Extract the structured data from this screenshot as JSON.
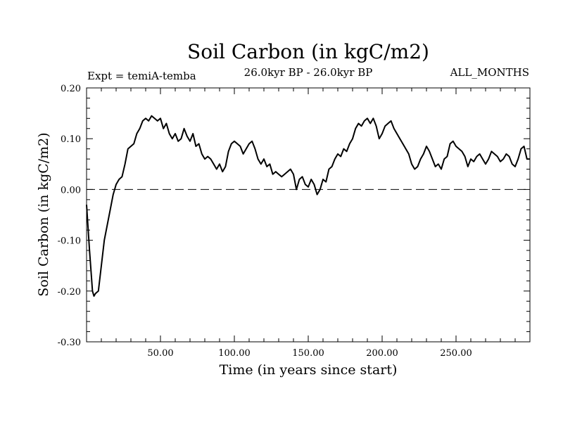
{
  "chart_data": {
    "type": "line",
    "title": "Soil Carbon (in kgC/m2)",
    "subtitle": "26.0kyr BP - 26.0kyr BP",
    "left_label": "Expt = temiA-temba",
    "right_label": "ALL_MONTHS",
    "xlabel": "Time (in years since start)",
    "ylabel": "Soil Carbon (in kgC/m2)",
    "xlim": [
      0,
      300
    ],
    "ylim": [
      -0.3,
      0.2
    ],
    "x_ticks": [
      50,
      100,
      150,
      200,
      250
    ],
    "x_tick_labels": [
      "50.00",
      "100.00",
      "150.00",
      "200.00",
      "250.00"
    ],
    "y_ticks": [
      -0.3,
      -0.2,
      -0.1,
      0.0,
      0.1,
      0.2
    ],
    "y_tick_labels": [
      "-0.30",
      "-0.20",
      "-0.10",
      "0.00",
      "0.10",
      "0.20"
    ],
    "zero_line": "dashed",
    "series": [
      {
        "name": "Soil Carbon",
        "color": "#000000",
        "x": [
          0,
          2,
          4,
          5,
          6,
          8,
          10,
          12,
          14,
          16,
          18,
          20,
          22,
          24,
          26,
          28,
          30,
          32,
          34,
          36,
          38,
          40,
          42,
          44,
          46,
          48,
          50,
          52,
          54,
          56,
          58,
          60,
          62,
          64,
          66,
          68,
          70,
          72,
          74,
          76,
          78,
          80,
          82,
          84,
          86,
          88,
          90,
          92,
          94,
          96,
          98,
          100,
          102,
          104,
          106,
          108,
          110,
          112,
          114,
          116,
          118,
          120,
          122,
          124,
          126,
          128,
          130,
          132,
          134,
          136,
          138,
          140,
          142,
          144,
          146,
          148,
          150,
          152,
          154,
          156,
          158,
          160,
          162,
          164,
          166,
          168,
          170,
          172,
          174,
          176,
          178,
          180,
          182,
          184,
          186,
          188,
          190,
          192,
          194,
          196,
          198,
          200,
          202,
          204,
          206,
          208,
          210,
          212,
          214,
          216,
          218,
          220,
          222,
          224,
          226,
          228,
          230,
          232,
          234,
          236,
          238,
          240,
          242,
          244,
          246,
          248,
          250,
          252,
          254,
          256,
          258,
          260,
          262,
          264,
          266,
          268,
          270,
          272,
          274,
          276,
          278,
          280,
          282,
          284,
          286,
          288,
          290,
          292,
          294,
          296,
          298,
          300
        ],
        "values": [
          -0.03,
          -0.12,
          -0.2,
          -0.21,
          -0.205,
          -0.2,
          -0.15,
          -0.1,
          -0.07,
          -0.04,
          -0.01,
          0.01,
          0.02,
          0.025,
          0.05,
          0.08,
          0.085,
          0.09,
          0.11,
          0.12,
          0.135,
          0.14,
          0.135,
          0.145,
          0.14,
          0.135,
          0.14,
          0.12,
          0.13,
          0.11,
          0.1,
          0.11,
          0.095,
          0.1,
          0.12,
          0.105,
          0.095,
          0.11,
          0.085,
          0.09,
          0.07,
          0.06,
          0.065,
          0.06,
          0.05,
          0.04,
          0.05,
          0.035,
          0.045,
          0.075,
          0.09,
          0.095,
          0.09,
          0.085,
          0.07,
          0.08,
          0.09,
          0.095,
          0.08,
          0.06,
          0.05,
          0.06,
          0.045,
          0.05,
          0.03,
          0.035,
          0.03,
          0.025,
          0.03,
          0.035,
          0.04,
          0.03,
          0.0,
          0.02,
          0.025,
          0.01,
          0.005,
          0.02,
          0.01,
          -0.01,
          0.0,
          0.02,
          0.015,
          0.04,
          0.045,
          0.06,
          0.07,
          0.065,
          0.08,
          0.075,
          0.09,
          0.1,
          0.12,
          0.13,
          0.125,
          0.135,
          0.14,
          0.13,
          0.14,
          0.125,
          0.1,
          0.11,
          0.125,
          0.13,
          0.135,
          0.12,
          0.11,
          0.1,
          0.09,
          0.08,
          0.07,
          0.05,
          0.04,
          0.045,
          0.06,
          0.07,
          0.085,
          0.075,
          0.06,
          0.045,
          0.05,
          0.04,
          0.06,
          0.065,
          0.09,
          0.095,
          0.085,
          0.08,
          0.075,
          0.065,
          0.045,
          0.06,
          0.055,
          0.065,
          0.07,
          0.06,
          0.05,
          0.06,
          0.075,
          0.07,
          0.065,
          0.055,
          0.06,
          0.07,
          0.065,
          0.05,
          0.045,
          0.06,
          0.08,
          0.085,
          0.06,
          0.06
        ]
      }
    ]
  }
}
